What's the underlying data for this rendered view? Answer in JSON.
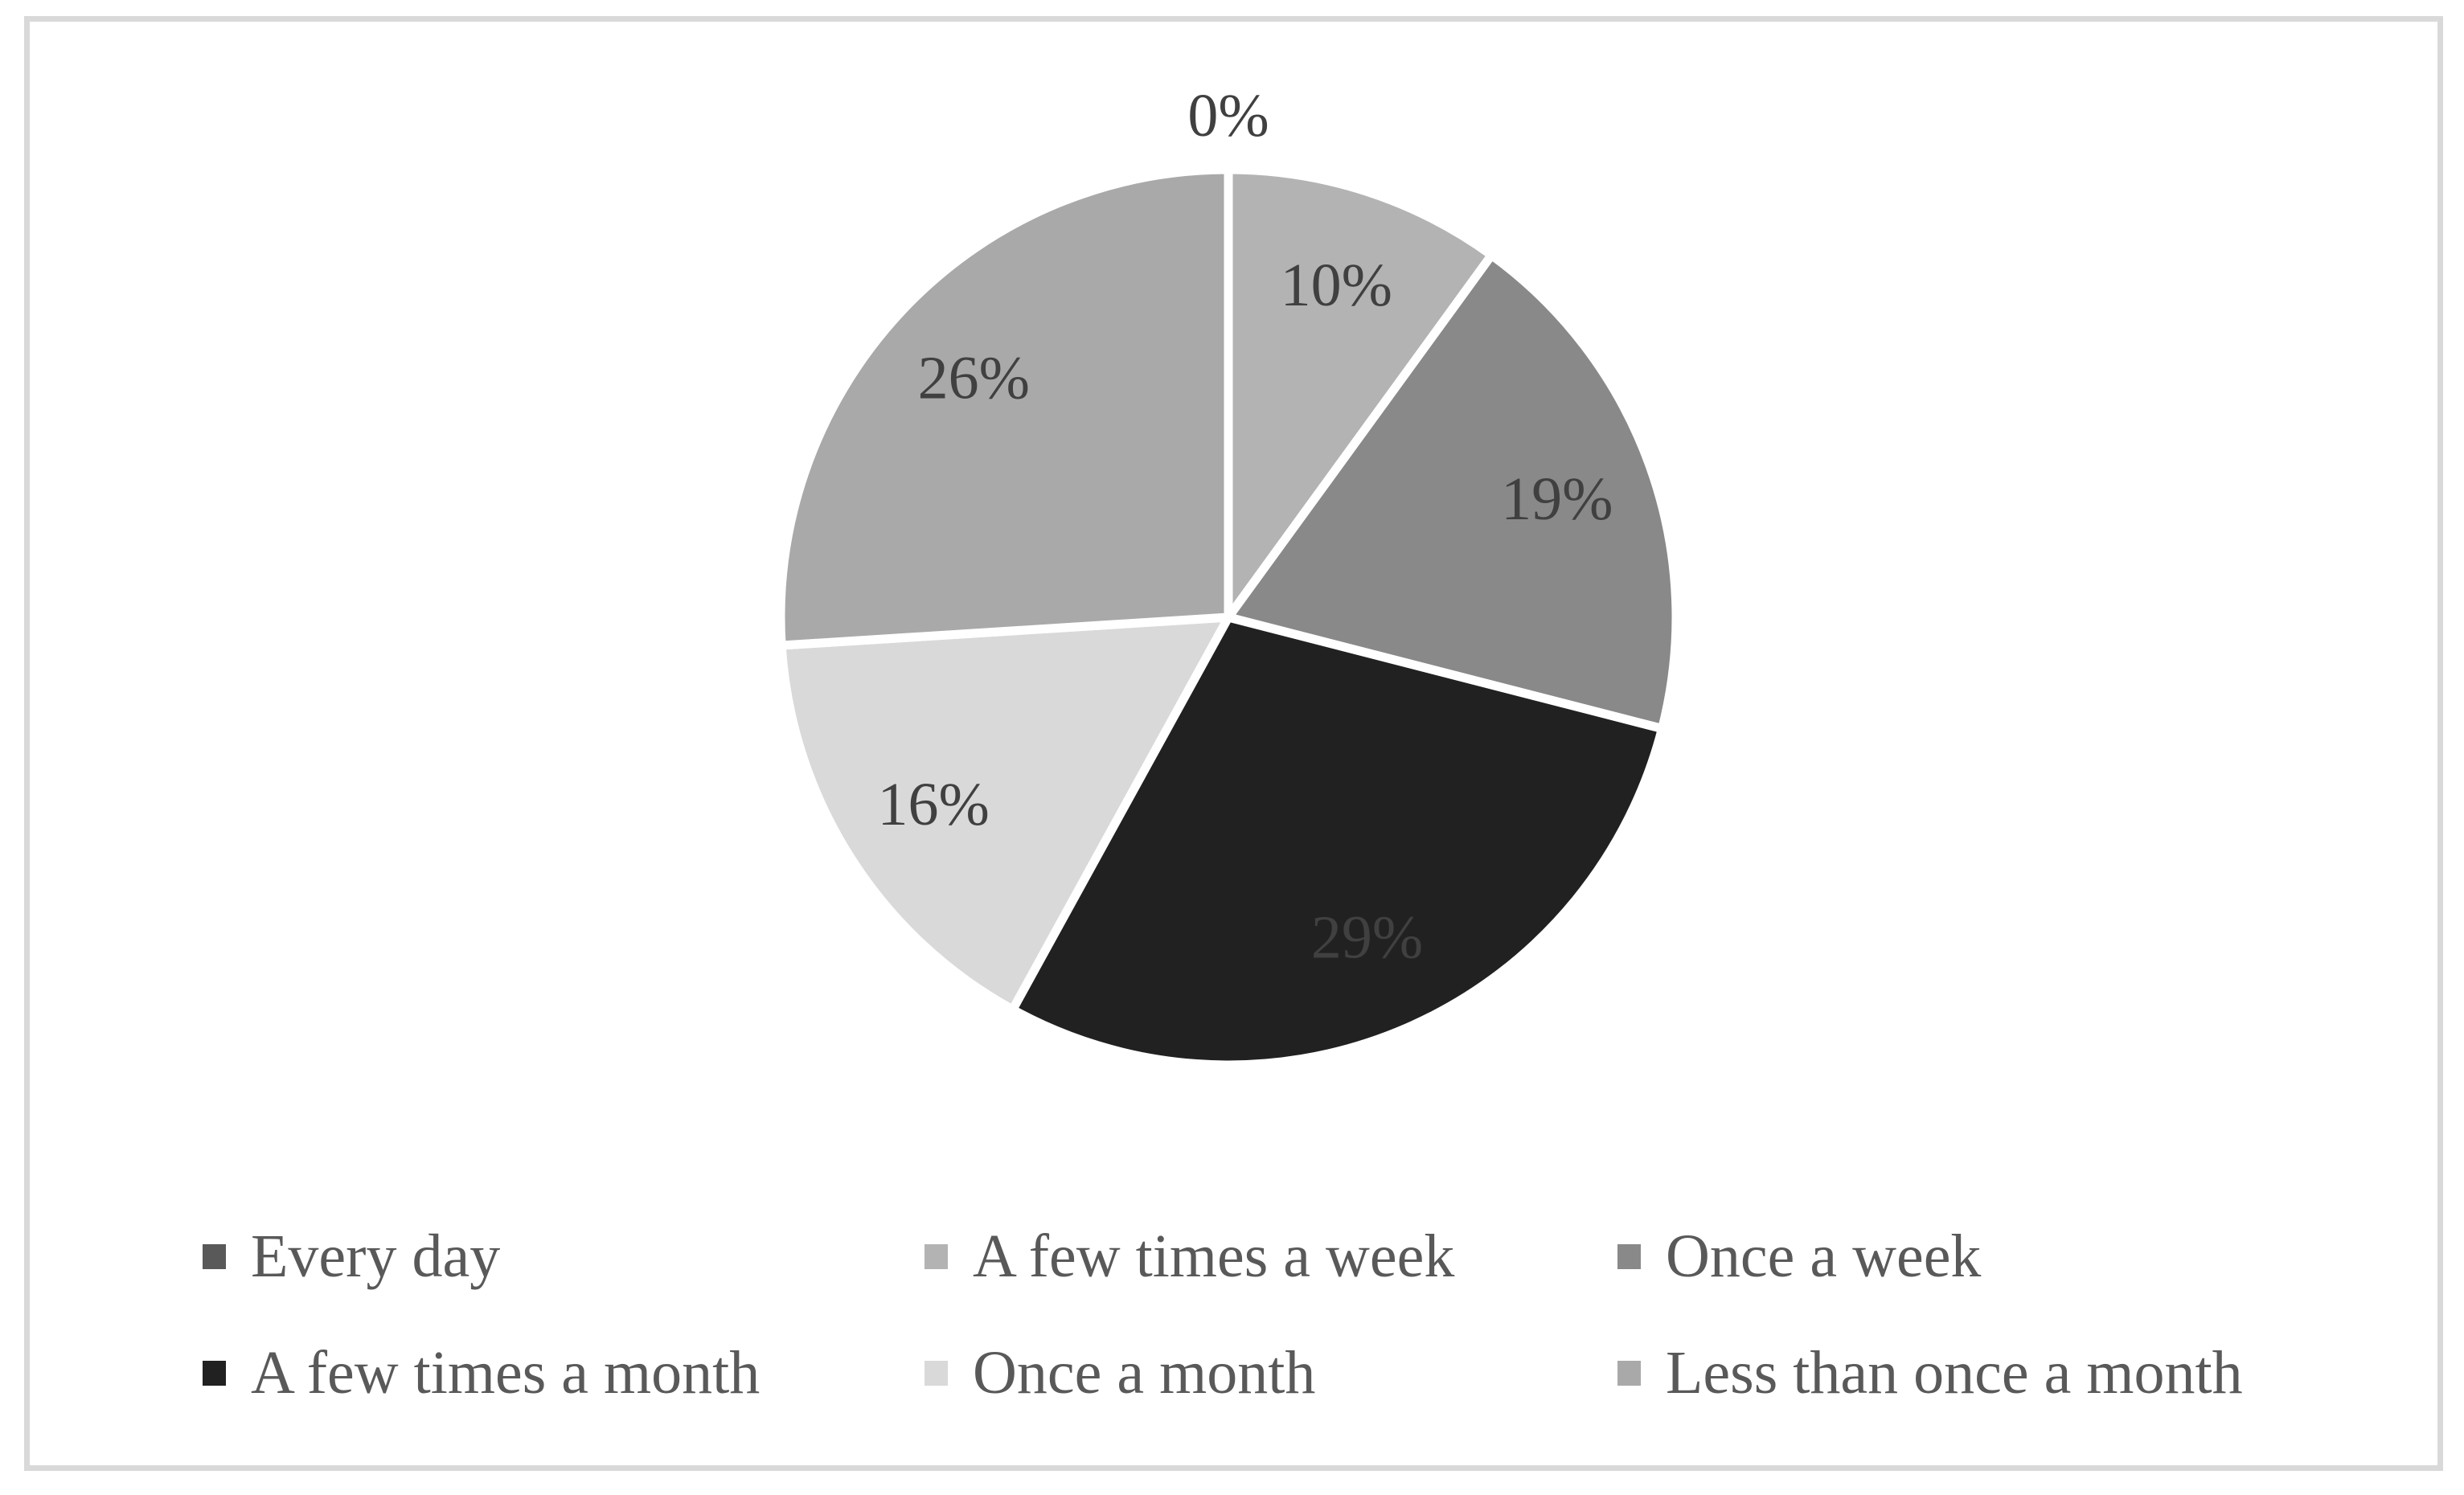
{
  "chart_data": {
    "type": "pie",
    "title": "",
    "categories": [
      "Every day",
      "A few times a week",
      "Once a week",
      "A few times a month",
      "Once a month",
      "Less than once a month"
    ],
    "values": [
      0,
      10,
      19,
      29,
      16,
      26
    ],
    "slice_labels": [
      "0%",
      "10%",
      "19%",
      "29%",
      "16%",
      "26%"
    ],
    "colors": [
      "#595959",
      "#b3b3b3",
      "#898989",
      "#212121",
      "#d9d9d9",
      "#a9a9a9"
    ],
    "start_angle": "top",
    "direction": "clockwise",
    "slice_gap_color": "#ffffff",
    "data_label_color": "#404040",
    "legend_position": "bottom",
    "legend_text_color": "#595959",
    "frame_border_color": "#d9d9d9"
  }
}
